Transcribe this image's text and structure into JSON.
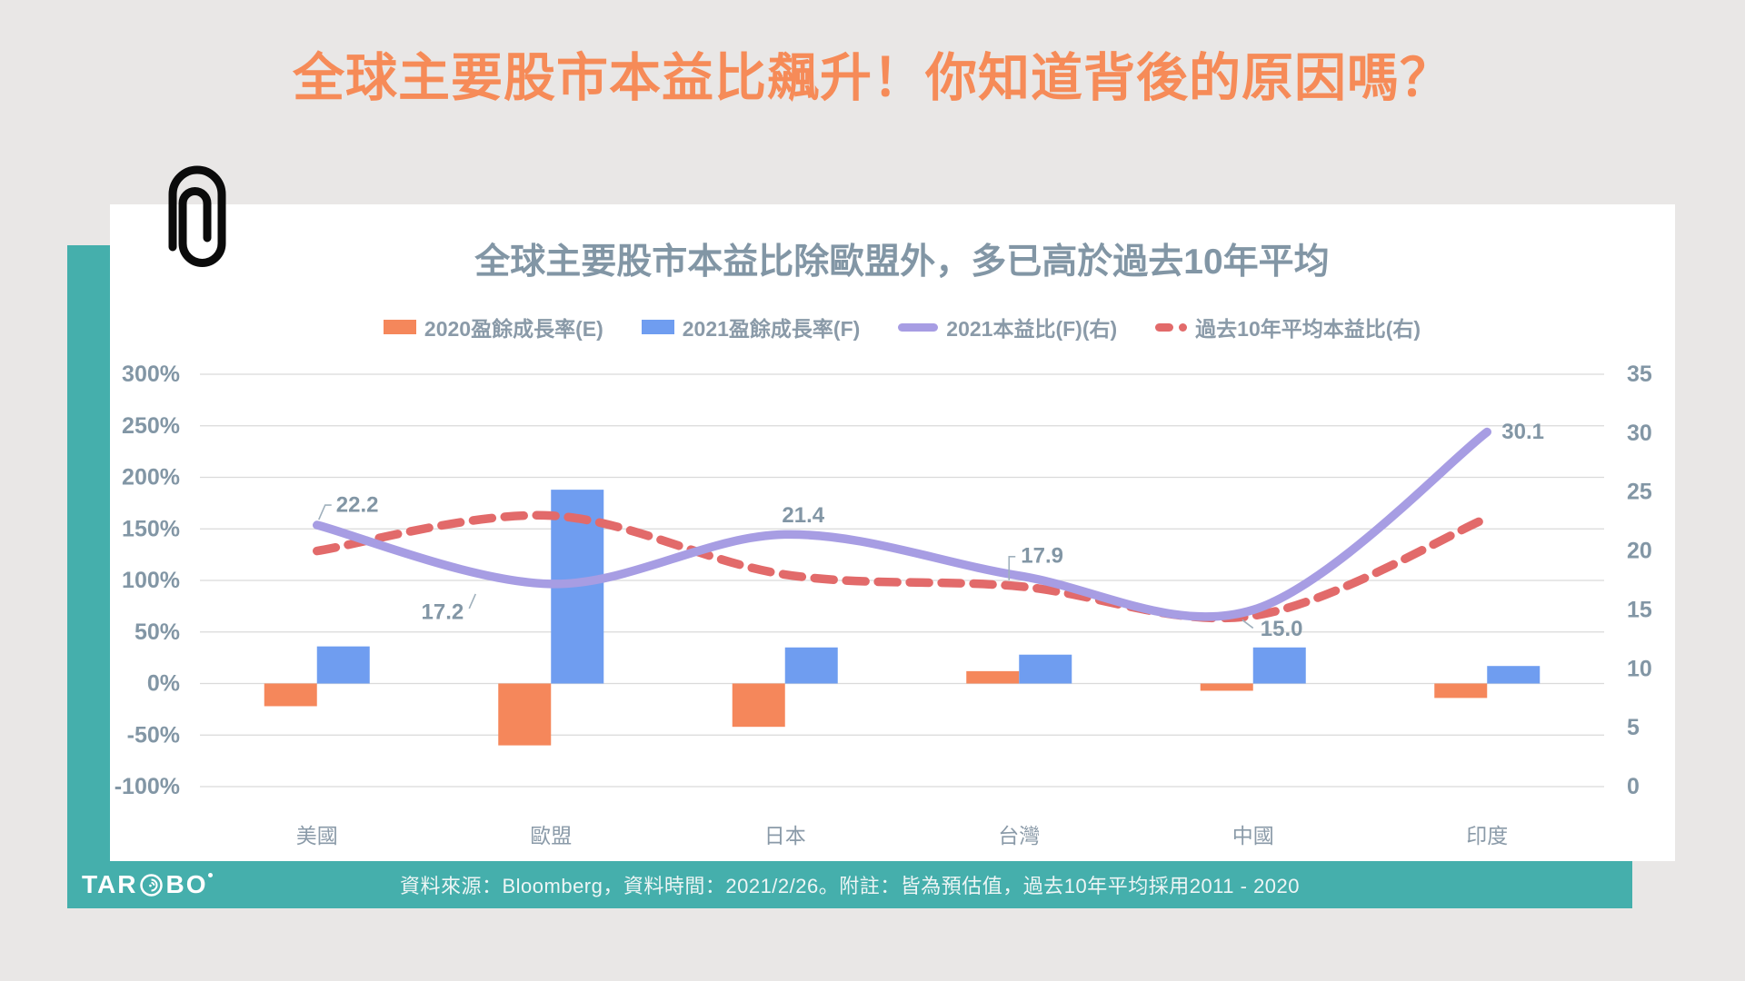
{
  "page": {
    "main_title": "全球主要股市本益比飆升！你知道背後的原因嗎？",
    "footer": {
      "logo_prefix": "TAR",
      "logo_suffix": "BO",
      "source_note": "資料來源：Bloomberg，資料時間：2021/2/26。附註：皆為預估值，過去10年平均採用2011 - 2020"
    }
  },
  "colors": {
    "background": "#E9E7E6",
    "card": "#FFFFFF",
    "teal": "#45AFAC",
    "title_orange": "#F68B58",
    "heading_gray": "#8296A5",
    "tick_gray": "#8296A5",
    "category_gray": "#8A9AA8",
    "grid": "#DADADA",
    "leader_gray": "#9FB0BC",
    "footer_text": "#EDF5F5"
  },
  "chart_data": {
    "type": "combo (bar + smoothed line, dual axis)",
    "title": "全球主要股市本益比除歐盟外，多已高於過去10年平均",
    "categories": [
      "美國",
      "歐盟",
      "日本",
      "台灣",
      "中國",
      "印度"
    ],
    "bar_series": [
      {
        "name": "2020盈餘成長率(E)",
        "color": "#F5875B",
        "axis": "left",
        "values": [
          -22,
          -60,
          -42,
          12,
          -7,
          -14
        ]
      },
      {
        "name": "2021盈餘成長率(F)",
        "color": "#6F9DF0",
        "axis": "left",
        "values": [
          36,
          188,
          35,
          28,
          35,
          17
        ]
      }
    ],
    "line_series": [
      {
        "name": "2021本益比(F)(右)",
        "color": "#A79DE3",
        "style": "solid",
        "axis": "right",
        "values": [
          22.2,
          17.2,
          21.4,
          17.9,
          15.0,
          30.1
        ],
        "point_labels": [
          "22.2",
          "17.2",
          "21.4",
          "17.9",
          "15.0",
          "30.1"
        ]
      },
      {
        "name": "過去10年平均本益比(右)",
        "color": "#E26A6A",
        "style": "dashed",
        "axis": "right",
        "values": [
          20.0,
          23.0,
          18.0,
          17.0,
          14.5,
          22.8
        ],
        "point_labels": []
      }
    ],
    "left_axis": {
      "unit": "%",
      "min": -100,
      "max": 300,
      "ticks": [
        300,
        250,
        200,
        150,
        100,
        50,
        0,
        -50,
        -100
      ]
    },
    "right_axis": {
      "unit": "",
      "min": 0,
      "max": 35,
      "ticks": [
        35,
        30,
        25,
        20,
        15,
        10,
        5,
        0
      ]
    },
    "grid": true,
    "legend_position": "top"
  }
}
